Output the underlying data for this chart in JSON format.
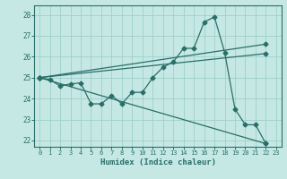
{
  "xlabel": "Humidex (Indice chaleur)",
  "background_color": "#c5e8e5",
  "line_color": "#2a6e68",
  "grid_color": "#9ecfca",
  "xlim": [
    -0.5,
    23.5
  ],
  "ylim": [
    21.7,
    28.45
  ],
  "xticks": [
    0,
    1,
    2,
    3,
    4,
    5,
    6,
    7,
    8,
    9,
    10,
    11,
    12,
    13,
    14,
    15,
    16,
    17,
    18,
    19,
    20,
    21,
    22,
    23
  ],
  "yticks": [
    22,
    23,
    24,
    25,
    26,
    27,
    28
  ],
  "line1_x": [
    0,
    1,
    2,
    3,
    4,
    5,
    6,
    7,
    8,
    9,
    10,
    11,
    12,
    13,
    14,
    15,
    16,
    17,
    18,
    19,
    20,
    21,
    22
  ],
  "line1_y": [
    25.0,
    24.9,
    24.6,
    24.7,
    24.75,
    23.75,
    23.75,
    24.15,
    23.75,
    24.3,
    24.3,
    25.0,
    25.5,
    25.75,
    26.4,
    26.4,
    27.65,
    27.9,
    26.2,
    23.5,
    22.75,
    22.75,
    21.85
  ],
  "line2_x": [
    0,
    22
  ],
  "line2_y": [
    25.0,
    21.85
  ],
  "line3_x": [
    0,
    22
  ],
  "line3_y": [
    25.0,
    26.6
  ],
  "line4_x": [
    0,
    22
  ],
  "line4_y": [
    25.0,
    26.15
  ]
}
